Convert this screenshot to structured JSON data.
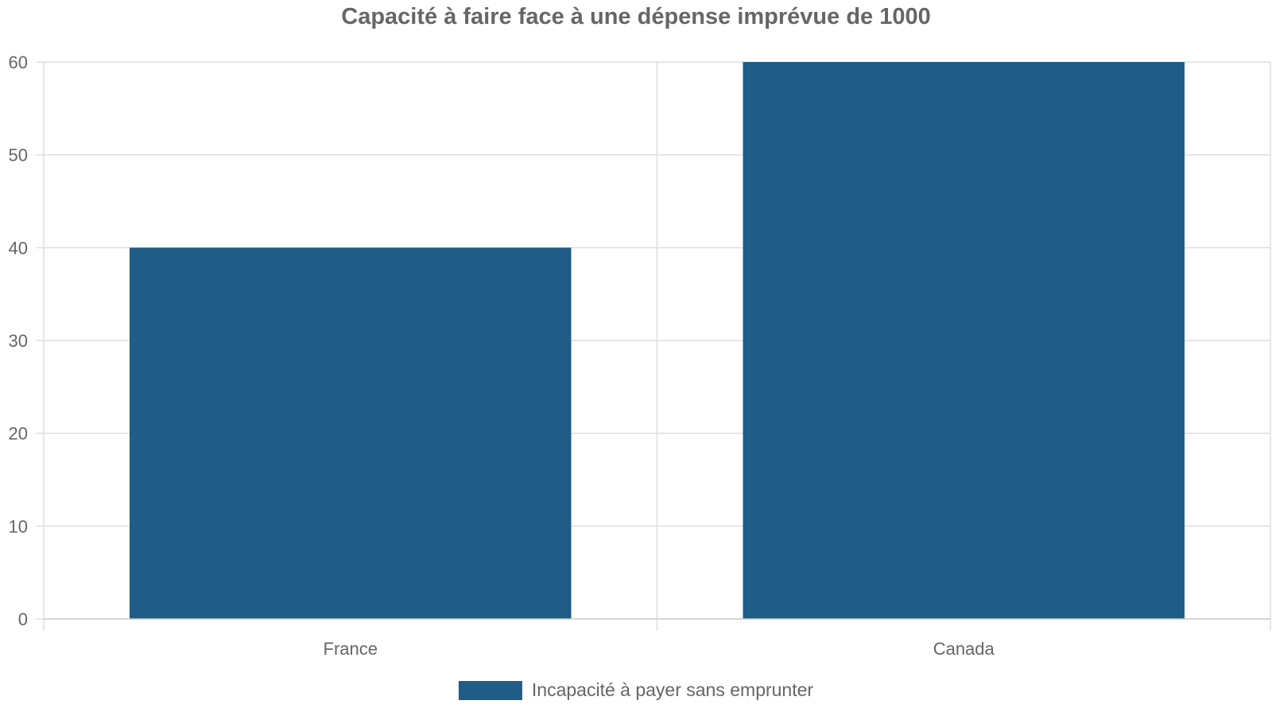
{
  "chart_data": {
    "type": "bar",
    "title": "Capacité à faire face à une dépense imprévue de 1000",
    "categories": [
      "France",
      "Canada"
    ],
    "series": [
      {
        "name": "Incapacité à payer sans emprunter",
        "values": [
          40,
          60
        ],
        "color": "#1f5c87"
      }
    ],
    "xlabel": "",
    "ylabel": "",
    "ylim": [
      0,
      60
    ],
    "yticks": [
      0,
      10,
      20,
      30,
      40,
      50,
      60
    ],
    "grid": true,
    "legend_position": "bottom-center"
  }
}
